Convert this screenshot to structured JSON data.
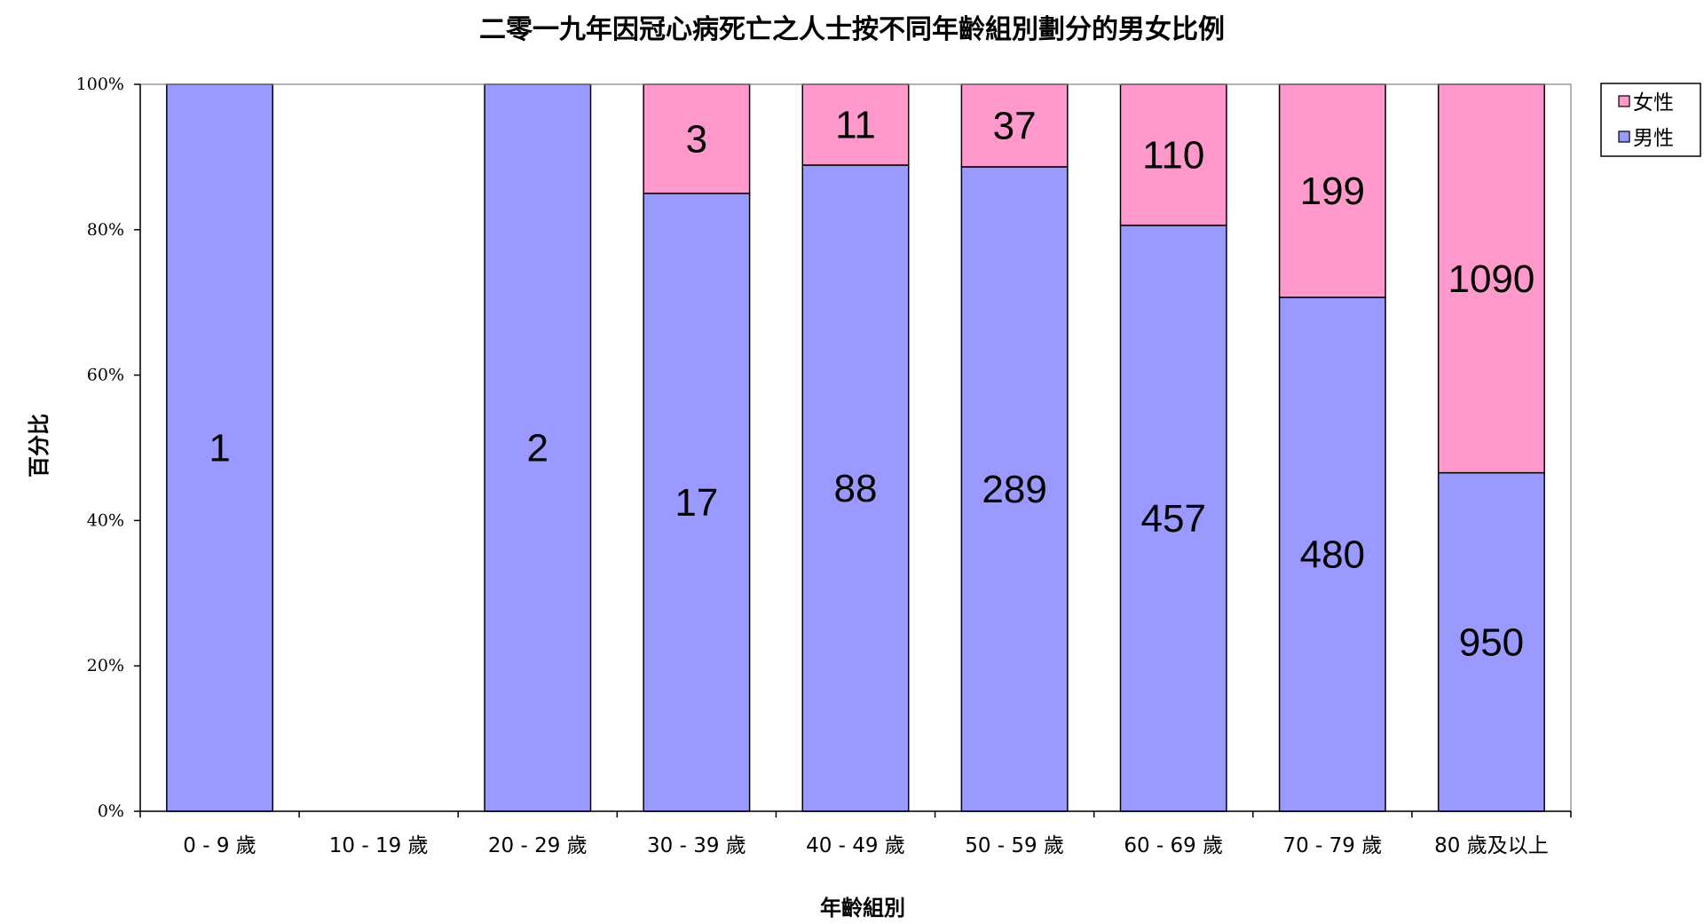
{
  "chart_data": {
    "type": "bar",
    "stacked": "percent",
    "title": "二零一九年因冠心病死亡之人士按不同年齡組別劃分的男女比例",
    "xlabel": "年齡組別",
    "ylabel": "百分比",
    "ylim": [
      0,
      100
    ],
    "yticks": [
      "0%",
      "20%",
      "40%",
      "60%",
      "80%",
      "100%"
    ],
    "categories": [
      "0 - 9 歲",
      "10 - 19 歲",
      "20 - 29 歲",
      "30 - 39 歲",
      "40 - 49 歲",
      "50 - 59 歲",
      "60 - 69 歲",
      "70 - 79 歲",
      "80 歲及以上"
    ],
    "series": [
      {
        "name": "男性",
        "color": "#9999ff",
        "values": [
          1,
          0,
          2,
          17,
          88,
          289,
          457,
          480,
          950
        ]
      },
      {
        "name": "女性",
        "color": "#ff99cc",
        "values": [
          0,
          0,
          0,
          3,
          11,
          37,
          110,
          199,
          1090
        ]
      }
    ],
    "legend": {
      "placement": "right",
      "order": [
        "女性",
        "男性"
      ]
    },
    "grid": false
  }
}
